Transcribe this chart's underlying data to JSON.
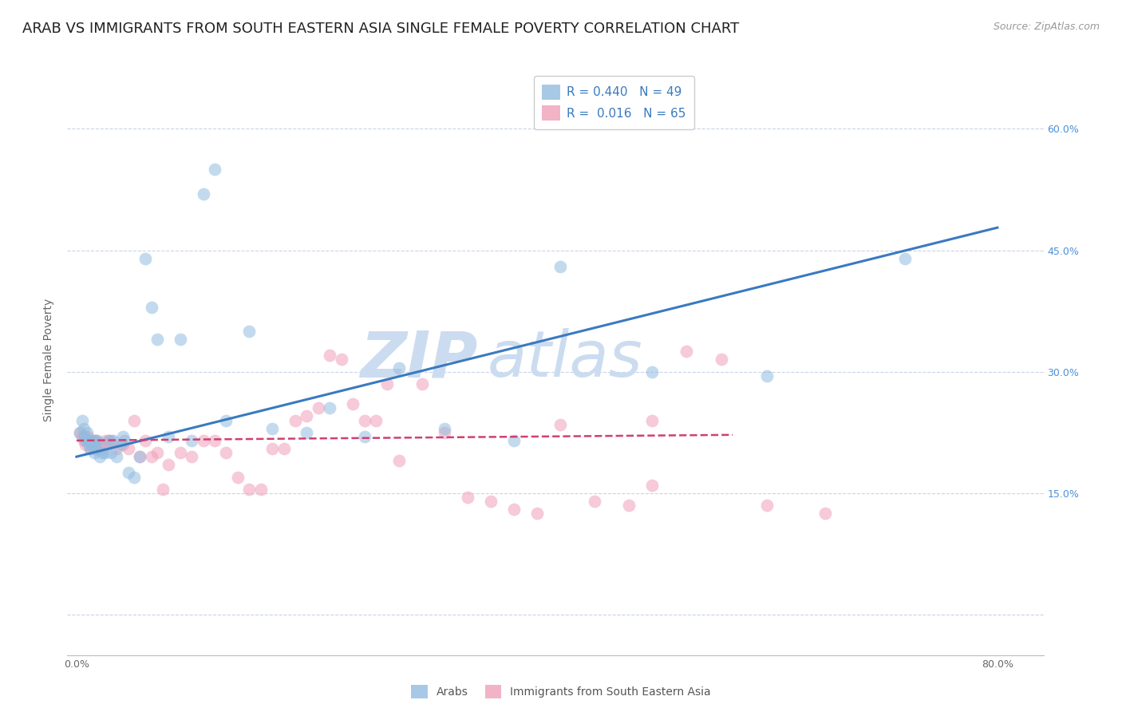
{
  "title": "ARAB VS IMMIGRANTS FROM SOUTH EASTERN ASIA SINGLE FEMALE POVERTY CORRELATION CHART",
  "source": "Source: ZipAtlas.com",
  "ylabel": "Single Female Poverty",
  "y_ticks": [
    0.0,
    0.15,
    0.3,
    0.45,
    0.6
  ],
  "y_tick_labels_right": [
    "",
    "15.0%",
    "30.0%",
    "45.0%",
    "60.0%"
  ],
  "xlim": [
    -0.008,
    0.84
  ],
  "ylim": [
    -0.05,
    0.68
  ],
  "arab_color": "#92bce0",
  "sea_color": "#f0a0b8",
  "arab_line_color": "#3a7abf",
  "sea_line_color": "#d04070",
  "watermark_color": "#ccdcf0",
  "arab_R": 0.44,
  "sea_R": 0.016,
  "arab_N": 49,
  "sea_N": 65,
  "background_color": "#ffffff",
  "grid_color": "#c8d4e8",
  "title_fontsize": 13,
  "axis_label_fontsize": 10,
  "tick_fontsize": 9,
  "legend_fontsize": 11,
  "marker_size": 130,
  "marker_alpha": 0.55,
  "right_axis_color": "#4a90d9",
  "arab_x": [
    0.003,
    0.005,
    0.006,
    0.007,
    0.008,
    0.009,
    0.01,
    0.011,
    0.012,
    0.013,
    0.014,
    0.015,
    0.016,
    0.017,
    0.018,
    0.02,
    0.022,
    0.025,
    0.028,
    0.03,
    0.032,
    0.035,
    0.038,
    0.04,
    0.042,
    0.045,
    0.05,
    0.055,
    0.06,
    0.065,
    0.07,
    0.08,
    0.09,
    0.1,
    0.11,
    0.12,
    0.13,
    0.15,
    0.17,
    0.2,
    0.22,
    0.25,
    0.28,
    0.32,
    0.38,
    0.42,
    0.5,
    0.6,
    0.72
  ],
  "arab_y": [
    0.225,
    0.24,
    0.23,
    0.22,
    0.215,
    0.225,
    0.215,
    0.21,
    0.205,
    0.215,
    0.21,
    0.2,
    0.215,
    0.205,
    0.215,
    0.195,
    0.2,
    0.2,
    0.215,
    0.2,
    0.215,
    0.195,
    0.21,
    0.22,
    0.215,
    0.175,
    0.17,
    0.195,
    0.44,
    0.38,
    0.34,
    0.22,
    0.34,
    0.215,
    0.52,
    0.55,
    0.24,
    0.35,
    0.23,
    0.225,
    0.255,
    0.22,
    0.305,
    0.23,
    0.215,
    0.43,
    0.3,
    0.295,
    0.44
  ],
  "sea_x": [
    0.003,
    0.005,
    0.006,
    0.007,
    0.008,
    0.009,
    0.01,
    0.011,
    0.012,
    0.013,
    0.014,
    0.015,
    0.016,
    0.017,
    0.018,
    0.02,
    0.022,
    0.025,
    0.028,
    0.03,
    0.035,
    0.04,
    0.045,
    0.05,
    0.055,
    0.06,
    0.065,
    0.07,
    0.075,
    0.08,
    0.09,
    0.1,
    0.11,
    0.12,
    0.13,
    0.14,
    0.15,
    0.16,
    0.17,
    0.18,
    0.19,
    0.2,
    0.21,
    0.22,
    0.23,
    0.24,
    0.25,
    0.26,
    0.27,
    0.28,
    0.3,
    0.32,
    0.34,
    0.36,
    0.38,
    0.4,
    0.42,
    0.45,
    0.48,
    0.5,
    0.53,
    0.56,
    0.6,
    0.65,
    0.5
  ],
  "sea_y": [
    0.225,
    0.22,
    0.215,
    0.22,
    0.21,
    0.215,
    0.22,
    0.215,
    0.205,
    0.215,
    0.21,
    0.215,
    0.205,
    0.215,
    0.21,
    0.21,
    0.205,
    0.215,
    0.215,
    0.215,
    0.205,
    0.21,
    0.205,
    0.24,
    0.195,
    0.215,
    0.195,
    0.2,
    0.155,
    0.185,
    0.2,
    0.195,
    0.215,
    0.215,
    0.2,
    0.17,
    0.155,
    0.155,
    0.205,
    0.205,
    0.24,
    0.245,
    0.255,
    0.32,
    0.315,
    0.26,
    0.24,
    0.24,
    0.285,
    0.19,
    0.285,
    0.225,
    0.145,
    0.14,
    0.13,
    0.125,
    0.235,
    0.14,
    0.135,
    0.16,
    0.325,
    0.315,
    0.135,
    0.125,
    0.24
  ],
  "arab_line_x0": 0.0,
  "arab_line_x1": 0.8,
  "arab_line_y0": 0.195,
  "arab_line_y1": 0.478,
  "sea_line_x0": 0.0,
  "sea_line_x1": 0.57,
  "sea_line_y0": 0.215,
  "sea_line_y1": 0.222
}
